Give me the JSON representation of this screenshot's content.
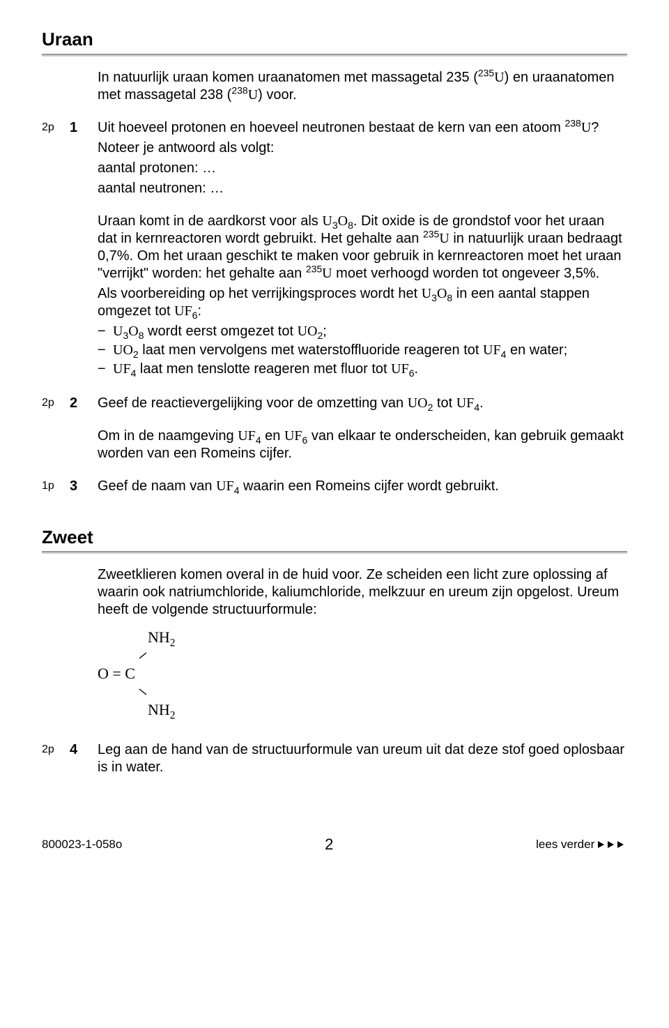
{
  "sectionA": {
    "title": "Uraan",
    "intro_html": "In natuurlijk uraan komen uraanatomen met massagetal 235 (<span class='sup'>235</span><span class='serif'>U</span>) en uraanatomen met massagetal 238 (<span class='sup'>238</span><span class='serif'>U</span>) voor.",
    "q1": {
      "points": "2p",
      "num": "1",
      "stem_html": "Uit hoeveel protonen en hoeveel neutronen bestaat de kern van een atoom <span class='sup'>238</span><span class='serif'>U</span>?",
      "note1": "Noteer je antwoord als volgt:",
      "note2": "aantal protonen: …",
      "note3": "aantal neutronen: …"
    },
    "mid_html_p1": "Uraan komt in de aardkorst voor als <span class='serif'>U</span><span class='sub'>3</span><span class='serif'>O</span><span class='sub'>8</span>. Dit oxide is de grondstof voor het uraan dat in kernreactoren wordt gebruikt. Het gehalte aan <span class='sup'>235</span><span class='serif'>U</span> in natuurlijk uraan bedraagt 0,7%. Om het uraan geschikt te maken voor gebruik in kernreactoren moet het uraan \"verrijkt\" worden: het gehalte aan <span class='sup'>235</span><span class='serif'>U</span> moet verhoogd worden tot ongeveer 3,5%.",
    "mid_html_p2": "Als voorbereiding op het verrijkingsproces wordt het <span class='serif'>U</span><span class='sub'>3</span><span class='serif'>O</span><span class='sub'>8</span> in een aantal stappen omgezet tot <span class='serif'>UF</span><span class='sub'>6</span>:",
    "bullets": [
      "<span class='serif'>U</span><span class='sub'>3</span><span class='serif'>O</span><span class='sub'>8</span> wordt eerst omgezet tot <span class='serif'>UO</span><span class='sub'>2</span>;",
      "<span class='serif'>UO</span><span class='sub'>2</span> laat men vervolgens met waterstoffluoride reageren tot <span class='serif'>UF</span><span class='sub'>4</span> en water;",
      "<span class='serif'>UF</span><span class='sub'>4</span> laat men tenslotte reageren met fluor tot <span class='serif'>UF</span><span class='sub'>6</span>."
    ],
    "q2": {
      "points": "2p",
      "num": "2",
      "stem_html": "Geef de reactievergelijking voor de omzetting van <span class='serif'>UO</span><span class='sub'>2</span> tot <span class='serif'>UF</span><span class='sub'>4</span>."
    },
    "post2_html": "Om in de naamgeving <span class='serif'>UF</span><span class='sub'>4</span> en <span class='serif'>UF</span><span class='sub'>6</span> van elkaar te onderscheiden, kan gebruik gemaakt worden van een Romeins cijfer.",
    "q3": {
      "points": "1p",
      "num": "3",
      "stem_html": "Geef de naam van <span class='serif'>UF</span><span class='sub'>4</span> waarin een Romeins cijfer wordt gebruikt."
    }
  },
  "sectionB": {
    "title": "Zweet",
    "intro": "Zweetklieren komen overal in de huid voor. Ze scheiden een licht zure oplossing af waarin ook natriumchloride, kaliumchloride, melkzuur en ureum zijn opgelost. Ureum heeft de volgende structuurformule:",
    "struct": {
      "top": "NH",
      "top_sub": "2",
      "mid_left": "O = C",
      "bot": "NH",
      "bot_sub": "2"
    },
    "q4": {
      "points": "2p",
      "num": "4",
      "stem": "Leg aan de hand van de structuurformule van ureum uit dat deze stof goed oplosbaar is in water."
    }
  },
  "footer": {
    "code": "800023-1-058o",
    "page": "2",
    "cont": "lees verder"
  }
}
